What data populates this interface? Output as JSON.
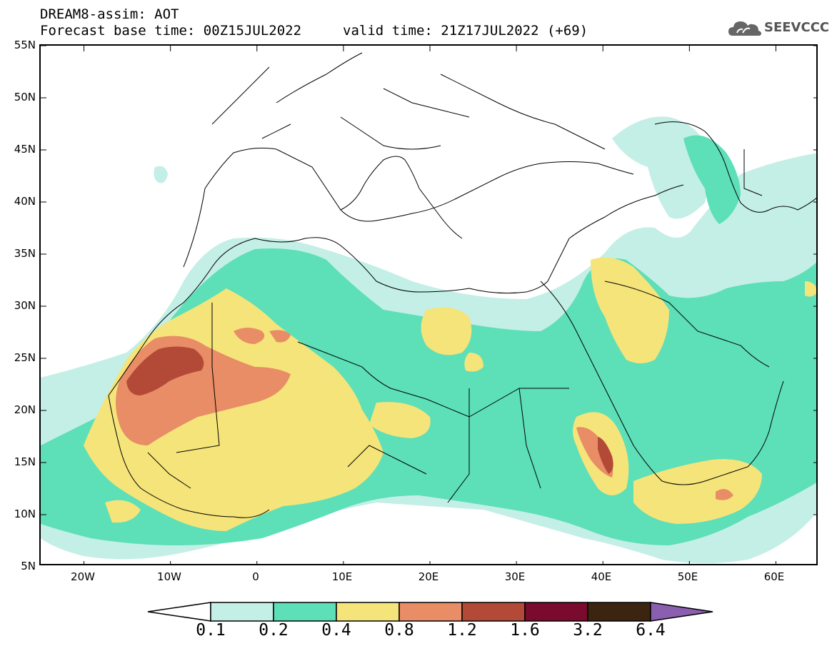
{
  "header": {
    "title": "DREAM8-assim: AOT",
    "base_time": "Forecast base time: 00Z15JUL2022",
    "valid_time": "valid time: 21Z17JUL2022 (+69)",
    "logo_text": "SEEVCCC"
  },
  "map": {
    "lon_range": [
      -25,
      65
    ],
    "lat_range": [
      5,
      55
    ],
    "lat_ticks": [
      "55N",
      "50N",
      "45N",
      "40N",
      "35N",
      "30N",
      "25N",
      "20N",
      "15N",
      "10N",
      "5N"
    ],
    "lon_ticks": [
      "20W",
      "10W",
      "0",
      "10E",
      "20E",
      "30E",
      "40E",
      "50E",
      "60E"
    ],
    "background_color": "#ffffff"
  },
  "legend": {
    "thresholds": [
      "0.1",
      "0.2",
      "0.4",
      "0.8",
      "1.2",
      "1.6",
      "3.2",
      "6.4"
    ],
    "colors": [
      "#ffffff",
      "#c3efe6",
      "#5ddfb8",
      "#f5e47a",
      "#e88d66",
      "#b34a38",
      "#7a0a2e",
      "#3b2410",
      "#8a5fb0"
    ]
  }
}
